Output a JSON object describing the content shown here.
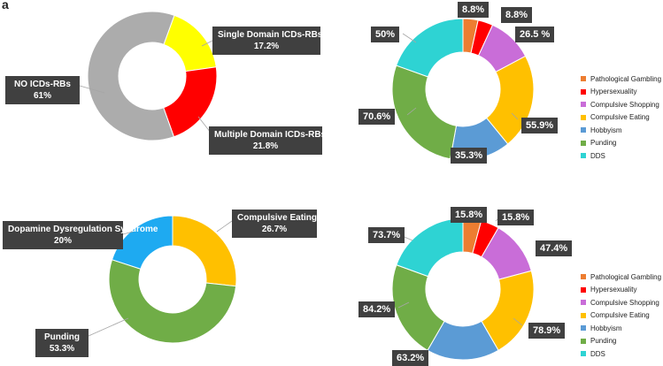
{
  "panel_letter": "a",
  "colors": {
    "callout_bg": "#404040",
    "gambling": "#ED7D31",
    "hypersexuality": "#FF0000",
    "shopping": "#C96DD8",
    "eating": "#FFC000",
    "hobbyism": "#5B9BD5",
    "punding": "#70AD47",
    "dds": "#2ED3D3"
  },
  "chart_data": [
    {
      "type": "pie",
      "subtype": "donut",
      "slices": [
        {
          "name": "Single Domain ICDs-RBs",
          "value": 17.2,
          "label": "17.2%",
          "color": "#FFFF00"
        },
        {
          "name": "Multiple Domain ICDs-RBs",
          "value": 21.8,
          "label": "21.8%",
          "color": "#FF0000"
        },
        {
          "name": "NO ICDs-RBs",
          "value": 61,
          "label": "61%",
          "color": "#ACACAC"
        }
      ]
    },
    {
      "type": "pie",
      "subtype": "donut",
      "legend_position": "right",
      "slices": [
        {
          "name": "Pathological Gambling",
          "value": 8.8,
          "label": "8.8%",
          "color": "#ED7D31"
        },
        {
          "name": "Hypersexuality",
          "value": 8.8,
          "label": "8.8%",
          "color": "#FF0000"
        },
        {
          "name": "Compulsive Shopping",
          "value": 26.5,
          "label": "26.5 %",
          "color": "#C96DD8"
        },
        {
          "name": "Compulsive Eating",
          "value": 55.9,
          "label": "55.9%",
          "color": "#FFC000"
        },
        {
          "name": "Hobbyism",
          "value": 35.3,
          "label": "35.3%",
          "color": "#5B9BD5"
        },
        {
          "name": "Punding",
          "value": 70.6,
          "label": "70.6%",
          "color": "#70AD47"
        },
        {
          "name": "DDS",
          "value": 50,
          "label": "50%",
          "color": "#2ED3D3"
        }
      ]
    },
    {
      "type": "pie",
      "subtype": "donut",
      "slices": [
        {
          "name": "Compulsive Eating",
          "value": 26.7,
          "label": "26.7%",
          "color": "#FFC000"
        },
        {
          "name": "Punding",
          "value": 53.3,
          "label": "53.3%",
          "color": "#70AD47"
        },
        {
          "name": "Dopamine Dysregulation Syndrome",
          "value": 20,
          "label": "20%",
          "color": "#1EAAF1"
        }
      ]
    },
    {
      "type": "pie",
      "subtype": "donut",
      "legend_position": "right",
      "slices": [
        {
          "name": "Pathological Gambling",
          "value": 15.8,
          "label": "15.8%",
          "color": "#ED7D31"
        },
        {
          "name": "Hypersexuality",
          "value": 15.8,
          "label": "15.8%",
          "color": "#FF0000"
        },
        {
          "name": "Compulsive Shopping",
          "value": 47.4,
          "label": "47.4%",
          "color": "#C96DD8"
        },
        {
          "name": "Compulsive Eating",
          "value": 78.9,
          "label": "78.9%",
          "color": "#FFC000"
        },
        {
          "name": "Hobbyism",
          "value": 63.2,
          "label": "63.2%",
          "color": "#5B9BD5"
        },
        {
          "name": "Punding",
          "value": 84.2,
          "label": "84.2%",
          "color": "#70AD47"
        },
        {
          "name": "DDS",
          "value": 73.7,
          "label": "73.7%",
          "color": "#2ED3D3"
        }
      ]
    }
  ]
}
